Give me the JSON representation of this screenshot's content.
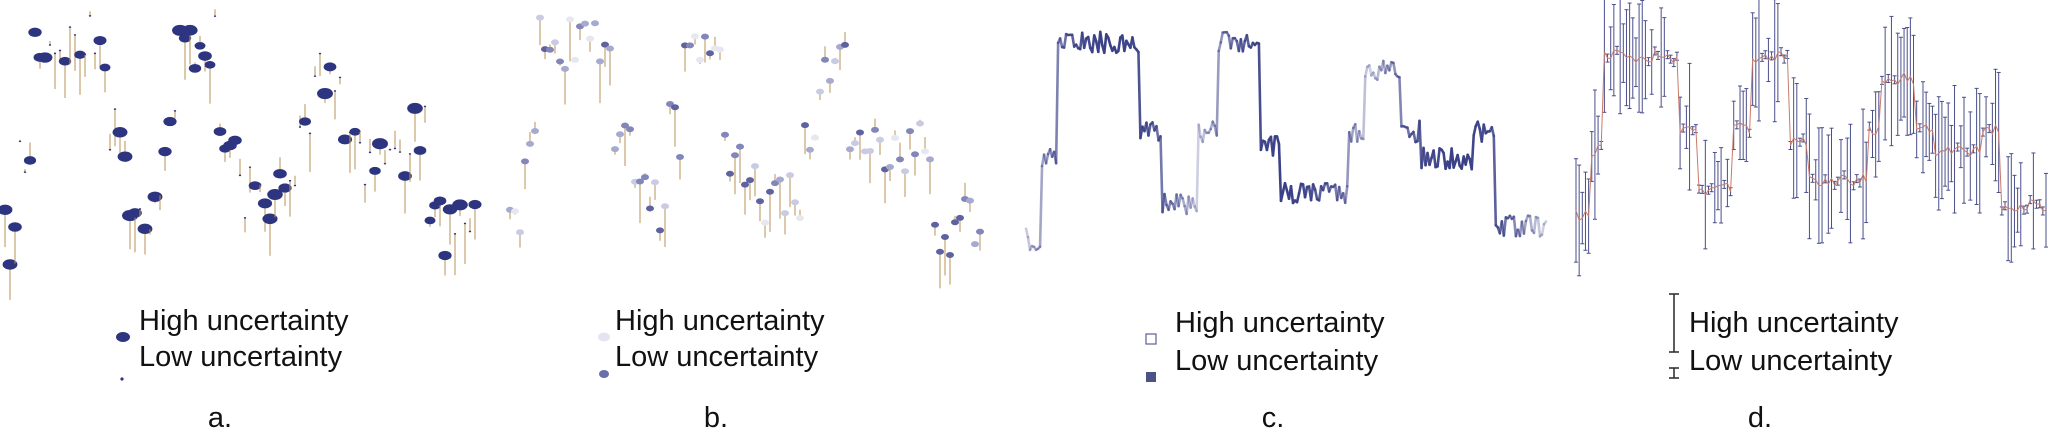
{
  "colors": {
    "dark": "#2e3580",
    "mid": "#6f72b0",
    "light": "#d6d7ea",
    "stem": "#b8935a",
    "error_center": "#c97a6a",
    "error_bar": "#4a4f8a"
  },
  "panels": [
    {
      "caption": "a.",
      "legend": [
        {
          "label": "High uncertainty",
          "symbol": "large-dark-ellipse"
        },
        {
          "label": "Low uncertainty",
          "symbol": "small-dark-dot"
        }
      ]
    },
    {
      "caption": "b.",
      "legend": [
        {
          "label": "High uncertainty",
          "symbol": "light-ellipse"
        },
        {
          "label": "Low uncertainty",
          "symbol": "dark-ellipse"
        }
      ]
    },
    {
      "caption": "c.",
      "legend": [
        {
          "label": "High uncertainty",
          "symbol": "light-square"
        },
        {
          "label": "Low uncertainty",
          "symbol": "dark-square"
        }
      ]
    },
    {
      "caption": "d.",
      "legend": [
        {
          "label": "High uncertainty",
          "symbol": "long-error-bar"
        },
        {
          "label": "Low uncertainty",
          "symbol": "short-error-bar"
        }
      ]
    }
  ]
}
